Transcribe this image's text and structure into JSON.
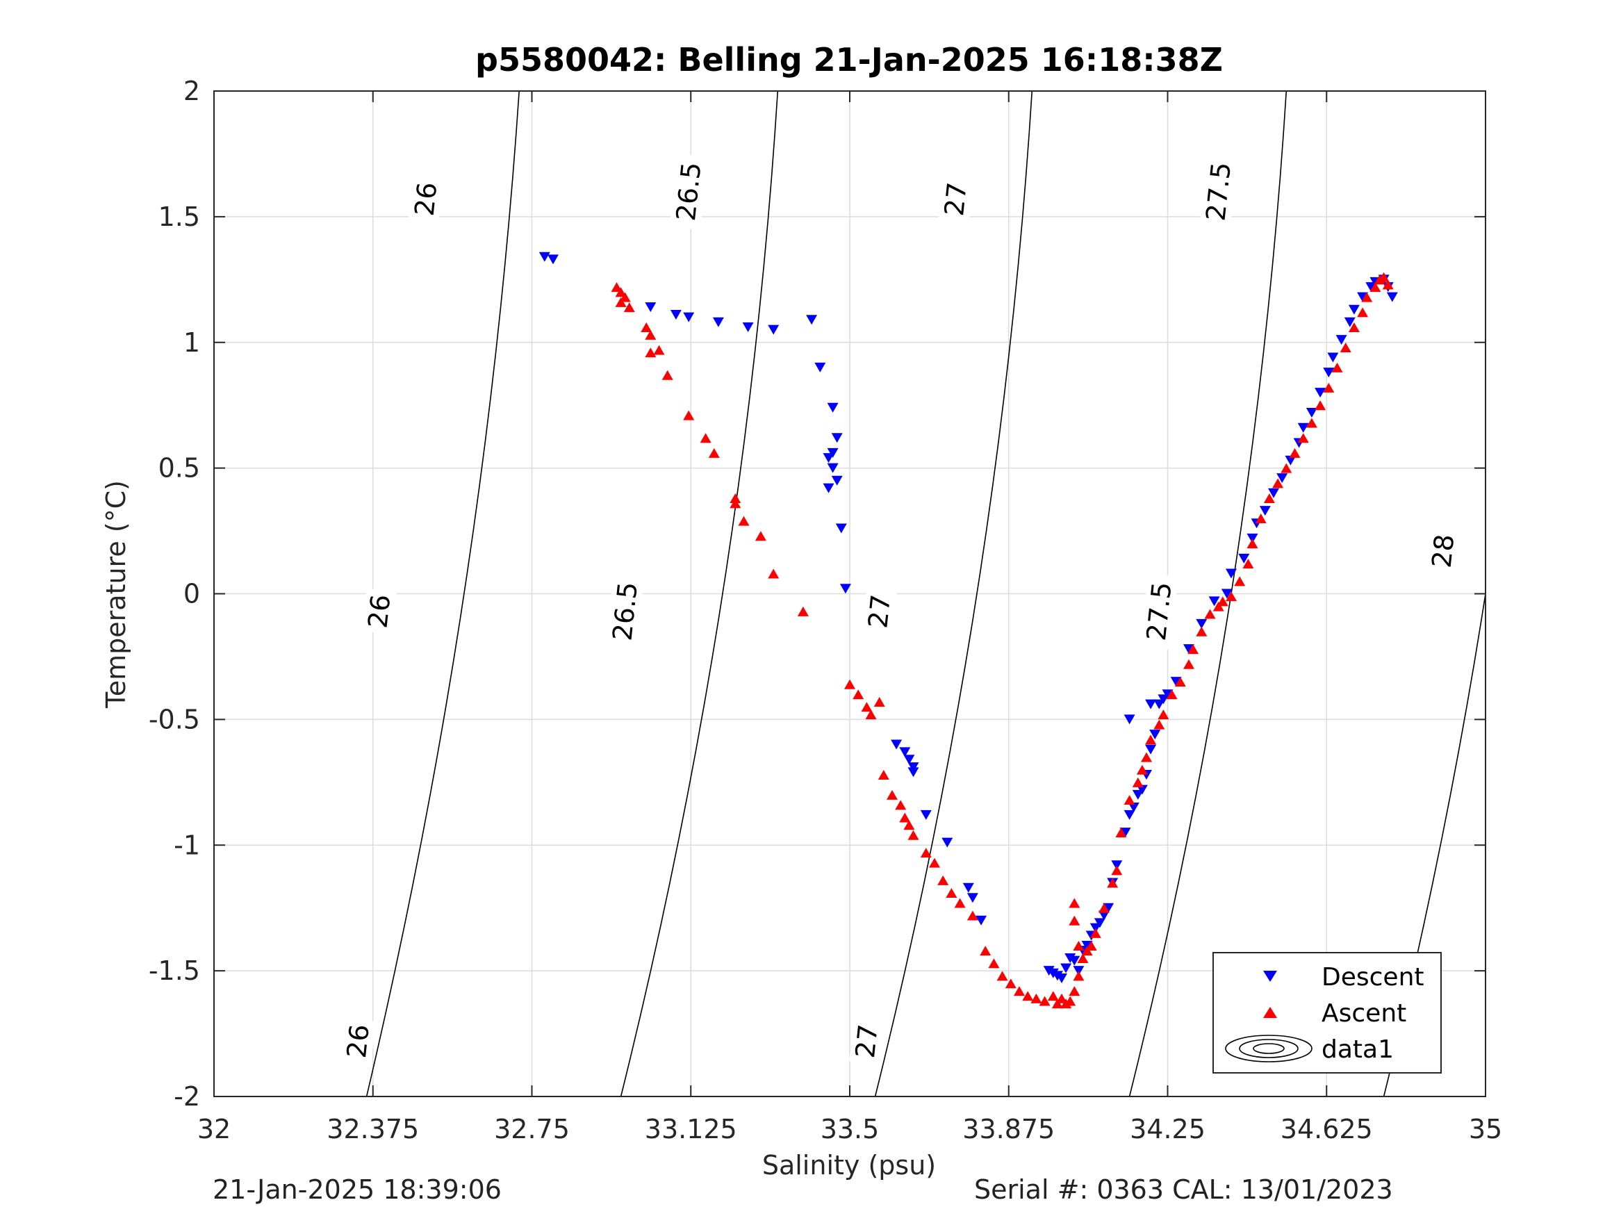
{
  "chart_data": {
    "type": "scatter",
    "title": "p5580042: Belling 21-Jan-2025 16:18:38Z",
    "xlabel": "Salinity (psu)",
    "ylabel": "Temperature (°C)",
    "xlim": [
      32,
      35
    ],
    "ylim": [
      -2,
      2
    ],
    "xticks": [
      "32",
      "32.375",
      "32.75",
      "33.125",
      "33.5",
      "33.875",
      "34.25",
      "34.625",
      "35"
    ],
    "yticks": [
      "2",
      "1.5",
      "1",
      "0.5",
      "0",
      "-0.5",
      "-1",
      "-1.5",
      "-2"
    ],
    "grid": true,
    "legend_position": "bottom-right",
    "series": [
      {
        "name": "Descent",
        "marker": "triangle-down",
        "color": "#0000ff",
        "points": [
          [
            32.78,
            1.34
          ],
          [
            32.8,
            1.33
          ],
          [
            33.03,
            1.14
          ],
          [
            33.09,
            1.11
          ],
          [
            33.12,
            1.1
          ],
          [
            33.19,
            1.08
          ],
          [
            33.26,
            1.06
          ],
          [
            33.32,
            1.05
          ],
          [
            33.41,
            1.09
          ],
          [
            33.43,
            0.9
          ],
          [
            33.46,
            0.74
          ],
          [
            33.47,
            0.62
          ],
          [
            33.46,
            0.56
          ],
          [
            33.45,
            0.54
          ],
          [
            33.46,
            0.5
          ],
          [
            33.47,
            0.45
          ],
          [
            33.45,
            0.42
          ],
          [
            33.48,
            0.26
          ],
          [
            33.49,
            0.02
          ],
          [
            33.61,
            -0.6
          ],
          [
            33.63,
            -0.63
          ],
          [
            33.64,
            -0.66
          ],
          [
            33.65,
            -0.69
          ],
          [
            33.65,
            -0.71
          ],
          [
            33.68,
            -0.88
          ],
          [
            33.73,
            -0.99
          ],
          [
            33.78,
            -1.17
          ],
          [
            33.79,
            -1.21
          ],
          [
            33.81,
            -1.3
          ],
          [
            33.97,
            -1.5
          ],
          [
            33.98,
            -1.51
          ],
          [
            33.99,
            -1.52
          ],
          [
            34.0,
            -1.53
          ],
          [
            34.01,
            -1.49
          ],
          [
            34.02,
            -1.45
          ],
          [
            34.03,
            -1.46
          ],
          [
            34.04,
            -1.5
          ],
          [
            34.05,
            -1.42
          ],
          [
            34.06,
            -1.4
          ],
          [
            34.07,
            -1.36
          ],
          [
            34.08,
            -1.33
          ],
          [
            34.09,
            -1.31
          ],
          [
            34.1,
            -1.28
          ],
          [
            34.11,
            -1.25
          ],
          [
            34.12,
            -1.15
          ],
          [
            34.13,
            -1.08
          ],
          [
            34.15,
            -0.95
          ],
          [
            34.16,
            -0.88
          ],
          [
            34.17,
            -0.85
          ],
          [
            34.18,
            -0.8
          ],
          [
            34.19,
            -0.78
          ],
          [
            34.2,
            -0.72
          ],
          [
            34.21,
            -0.62
          ],
          [
            34.22,
            -0.56
          ],
          [
            34.16,
            -0.5
          ],
          [
            34.21,
            -0.44
          ],
          [
            34.23,
            -0.44
          ],
          [
            34.24,
            -0.42
          ],
          [
            34.25,
            -0.4
          ],
          [
            34.27,
            -0.35
          ],
          [
            34.3,
            -0.22
          ],
          [
            34.33,
            -0.12
          ],
          [
            34.36,
            -0.03
          ],
          [
            34.39,
            0.0
          ],
          [
            34.4,
            0.08
          ],
          [
            34.43,
            0.14
          ],
          [
            34.45,
            0.22
          ],
          [
            34.46,
            0.28
          ],
          [
            34.48,
            0.33
          ],
          [
            34.5,
            0.4
          ],
          [
            34.52,
            0.46
          ],
          [
            34.54,
            0.53
          ],
          [
            34.56,
            0.6
          ],
          [
            34.57,
            0.66
          ],
          [
            34.59,
            0.72
          ],
          [
            34.61,
            0.8
          ],
          [
            34.63,
            0.88
          ],
          [
            34.64,
            0.94
          ],
          [
            34.66,
            1.01
          ],
          [
            34.68,
            1.08
          ],
          [
            34.69,
            1.13
          ],
          [
            34.71,
            1.18
          ],
          [
            34.73,
            1.22
          ],
          [
            34.74,
            1.24
          ],
          [
            34.76,
            1.25
          ],
          [
            34.77,
            1.22
          ],
          [
            34.78,
            1.18
          ]
        ]
      },
      {
        "name": "Ascent",
        "marker": "triangle-up",
        "color": "#ff0000",
        "points": [
          [
            32.95,
            1.22
          ],
          [
            32.96,
            1.2
          ],
          [
            32.97,
            1.18
          ],
          [
            32.96,
            1.16
          ],
          [
            32.98,
            1.14
          ],
          [
            33.02,
            1.06
          ],
          [
            33.03,
            1.03
          ],
          [
            33.03,
            0.96
          ],
          [
            33.05,
            0.97
          ],
          [
            33.07,
            0.87
          ],
          [
            33.12,
            0.71
          ],
          [
            33.16,
            0.62
          ],
          [
            33.18,
            0.56
          ],
          [
            33.23,
            0.38
          ],
          [
            33.23,
            0.36
          ],
          [
            33.25,
            0.29
          ],
          [
            33.29,
            0.23
          ],
          [
            33.32,
            0.08
          ],
          [
            33.39,
            -0.07
          ],
          [
            33.5,
            -0.36
          ],
          [
            33.52,
            -0.4
          ],
          [
            33.54,
            -0.45
          ],
          [
            33.55,
            -0.48
          ],
          [
            33.57,
            -0.43
          ],
          [
            33.58,
            -0.72
          ],
          [
            33.6,
            -0.8
          ],
          [
            33.62,
            -0.84
          ],
          [
            33.63,
            -0.89
          ],
          [
            33.64,
            -0.92
          ],
          [
            33.65,
            -0.96
          ],
          [
            33.68,
            -1.03
          ],
          [
            33.7,
            -1.07
          ],
          [
            33.72,
            -1.14
          ],
          [
            33.74,
            -1.19
          ],
          [
            33.76,
            -1.23
          ],
          [
            33.79,
            -1.28
          ],
          [
            33.82,
            -1.42
          ],
          [
            33.84,
            -1.47
          ],
          [
            33.86,
            -1.52
          ],
          [
            33.88,
            -1.55
          ],
          [
            33.9,
            -1.58
          ],
          [
            33.92,
            -1.6
          ],
          [
            33.94,
            -1.61
          ],
          [
            33.96,
            -1.62
          ],
          [
            33.98,
            -1.6
          ],
          [
            33.99,
            -1.63
          ],
          [
            34.0,
            -1.61
          ],
          [
            34.01,
            -1.63
          ],
          [
            34.02,
            -1.62
          ],
          [
            34.03,
            -1.58
          ],
          [
            34.04,
            -1.52
          ],
          [
            34.04,
            -1.4
          ],
          [
            34.05,
            -1.45
          ],
          [
            34.06,
            -1.42
          ],
          [
            34.03,
            -1.3
          ],
          [
            34.03,
            -1.23
          ],
          [
            34.07,
            -1.4
          ],
          [
            34.08,
            -1.35
          ],
          [
            34.1,
            -1.25
          ],
          [
            34.12,
            -1.15
          ],
          [
            34.13,
            -1.1
          ],
          [
            34.14,
            -0.95
          ],
          [
            34.16,
            -0.82
          ],
          [
            34.18,
            -0.75
          ],
          [
            34.19,
            -0.7
          ],
          [
            34.2,
            -0.65
          ],
          [
            34.21,
            -0.58
          ],
          [
            34.23,
            -0.52
          ],
          [
            34.24,
            -0.48
          ],
          [
            34.26,
            -0.4
          ],
          [
            34.28,
            -0.35
          ],
          [
            34.3,
            -0.28
          ],
          [
            34.31,
            -0.22
          ],
          [
            34.33,
            -0.15
          ],
          [
            34.35,
            -0.08
          ],
          [
            34.37,
            -0.05
          ],
          [
            34.38,
            -0.03
          ],
          [
            34.4,
            -0.01
          ],
          [
            34.42,
            0.05
          ],
          [
            34.44,
            0.12
          ],
          [
            34.45,
            0.2
          ],
          [
            34.47,
            0.3
          ],
          [
            34.49,
            0.38
          ],
          [
            34.51,
            0.44
          ],
          [
            34.53,
            0.5
          ],
          [
            34.55,
            0.56
          ],
          [
            34.57,
            0.62
          ],
          [
            34.59,
            0.68
          ],
          [
            34.61,
            0.75
          ],
          [
            34.63,
            0.82
          ],
          [
            34.65,
            0.9
          ],
          [
            34.67,
            0.98
          ],
          [
            34.69,
            1.06
          ],
          [
            34.71,
            1.12
          ],
          [
            34.72,
            1.18
          ],
          [
            34.74,
            1.22
          ],
          [
            34.75,
            1.25
          ],
          [
            34.76,
            1.26
          ],
          [
            34.77,
            1.23
          ]
        ]
      }
    ],
    "isopycnals": [
      {
        "label": "26",
        "points": [
          [
            32.36,
            -2
          ],
          [
            32.59,
            0
          ],
          [
            32.72,
            2
          ]
        ]
      },
      {
        "label": "26.5",
        "points": [
          [
            32.96,
            -2
          ],
          [
            33.2,
            0
          ],
          [
            33.33,
            2
          ]
        ]
      },
      {
        "label": "27",
        "points": [
          [
            33.56,
            -2
          ],
          [
            33.8,
            0
          ],
          [
            33.93,
            2
          ]
        ]
      },
      {
        "label": "27.5",
        "points": [
          [
            34.16,
            -2
          ],
          [
            34.4,
            0
          ],
          [
            34.53,
            2
          ]
        ]
      },
      {
        "label": "28",
        "points": [
          [
            34.76,
            -2
          ],
          [
            35.0,
            0
          ],
          [
            35.13,
            2
          ]
        ]
      }
    ],
    "isopycnal_labels": [
      {
        "text": "26",
        "x": 32.34,
        "y": -1.78
      },
      {
        "text": "26",
        "x": 32.39,
        "y": -0.07
      },
      {
        "text": "26",
        "x": 32.5,
        "y": 1.57
      },
      {
        "text": "26.5",
        "x": 32.97,
        "y": -0.07
      },
      {
        "text": "26.5",
        "x": 33.12,
        "y": 1.6
      },
      {
        "text": "27",
        "x": 33.54,
        "y": -1.78
      },
      {
        "text": "27",
        "x": 33.57,
        "y": -0.07
      },
      {
        "text": "27",
        "x": 33.75,
        "y": 1.57
      },
      {
        "text": "27.5",
        "x": 34.23,
        "y": -0.07
      },
      {
        "text": "27.5",
        "x": 34.37,
        "y": 1.6
      },
      {
        "text": "28",
        "x": 34.78,
        "y": -1.53
      },
      {
        "text": "28",
        "x": 34.9,
        "y": 0.17
      }
    ]
  },
  "legend": {
    "entries": [
      "Descent",
      "Ascent",
      "data1"
    ]
  },
  "footer": {
    "left": "21-Jan-2025 18:39:06",
    "right": "Serial #: 0363  CAL: 13/01/2023"
  }
}
